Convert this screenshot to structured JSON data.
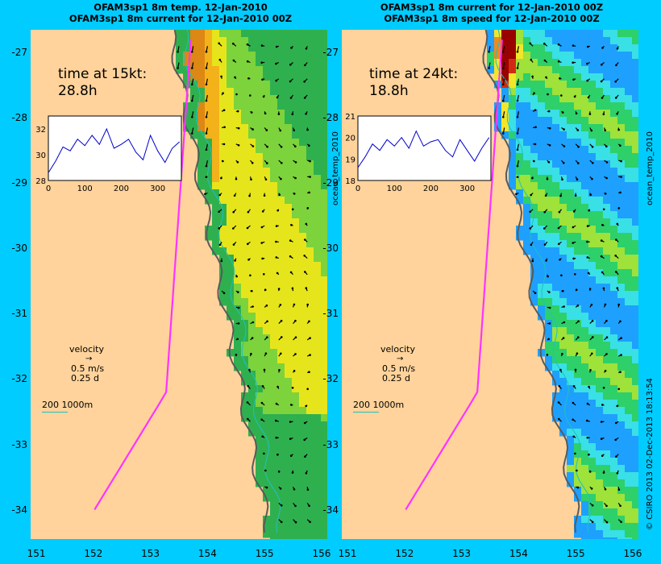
{
  "panels": [
    {
      "title_line1": "OFAM3sp1 8m temp. 12-Jan-2010",
      "title_line2": "OFAM3sp1 8m current for 12-Jan-2010 00Z",
      "time_label": "time at 15kt:",
      "time_value": "28.8h",
      "inset_series_label": "ocean_temp_2010",
      "inset_yticks": [
        "32",
        "30",
        "28"
      ],
      "inset_xticks": [
        "0",
        "100",
        "200",
        "300"
      ],
      "colormap": "temperature"
    },
    {
      "title_line1": "OFAM3sp1 8m current for 12-Jan-2010 00Z",
      "title_line2": "OFAM3sp1 8m speed for 12-Jan-2010 00Z",
      "time_label": "time at 24kt:",
      "time_value": "18.8h",
      "inset_series_label": "ocean_temp_2010",
      "inset_yticks": [
        "21",
        "20",
        "19",
        "18"
      ],
      "inset_xticks": [
        "0",
        "100",
        "200",
        "300"
      ],
      "colormap": "speed"
    }
  ],
  "legend": {
    "velocity_label": "velocity",
    "velocity_scale": "0.5 m/s",
    "velocity_time": "0.25 d",
    "isobath_label": "200  1000m"
  },
  "credit": "© CSIRO 2013   02-Dec-2013 18:13:54",
  "chart_data": [
    {
      "type": "heatmap",
      "title": "OFAM3sp1 8m temp. 12-Jan-2010",
      "subtitle": "OFAM3sp1 8m current for 12-Jan-2010 00Z",
      "x_ticks": [
        "151",
        "152",
        "153",
        "154",
        "155",
        "156"
      ],
      "y_ticks": [
        "-27",
        "-28",
        "-29",
        "-30",
        "-31",
        "-32",
        "-33",
        "-34"
      ],
      "xlim": [
        150.9,
        156.1
      ],
      "ylim": [
        -34.45,
        -26.65
      ],
      "inset": {
        "type": "line",
        "series_label": "ocean_temp_2010",
        "xlim": [
          0,
          365
        ],
        "ylim": [
          28,
          33
        ],
        "x": [
          0,
          20,
          40,
          60,
          80,
          100,
          120,
          140,
          160,
          180,
          200,
          220,
          240,
          260,
          280,
          300,
          320,
          340,
          360
        ],
        "values": [
          28.6,
          29.5,
          30.6,
          30.3,
          31.2,
          30.7,
          31.5,
          30.8,
          32.0,
          30.5,
          30.8,
          31.2,
          30.2,
          29.6,
          31.5,
          30.3,
          29.4,
          30.5,
          31.0
        ]
      }
    },
    {
      "type": "heatmap",
      "title": "OFAM3sp1 8m current for 12-Jan-2010 00Z",
      "subtitle": "OFAM3sp1 8m speed for 12-Jan-2010 00Z",
      "x_ticks": [
        "151",
        "152",
        "153",
        "154",
        "155",
        "156"
      ],
      "y_ticks": [
        "-27",
        "-28",
        "-29",
        "-30",
        "-31",
        "-32",
        "-33",
        "-34"
      ],
      "xlim": [
        150.9,
        156.1
      ],
      "ylim": [
        -34.45,
        -26.65
      ],
      "inset": {
        "type": "line",
        "series_label": "ocean_temp_2010",
        "xlim": [
          0,
          365
        ],
        "ylim": [
          18,
          21
        ],
        "x": [
          0,
          20,
          40,
          60,
          80,
          100,
          120,
          140,
          160,
          180,
          200,
          220,
          240,
          260,
          280,
          300,
          320,
          340,
          360
        ],
        "values": [
          18.6,
          19.1,
          19.7,
          19.4,
          19.9,
          19.6,
          20.0,
          19.5,
          20.3,
          19.6,
          19.8,
          19.9,
          19.4,
          19.1,
          19.9,
          19.4,
          18.9,
          19.5,
          20.0
        ]
      }
    }
  ]
}
